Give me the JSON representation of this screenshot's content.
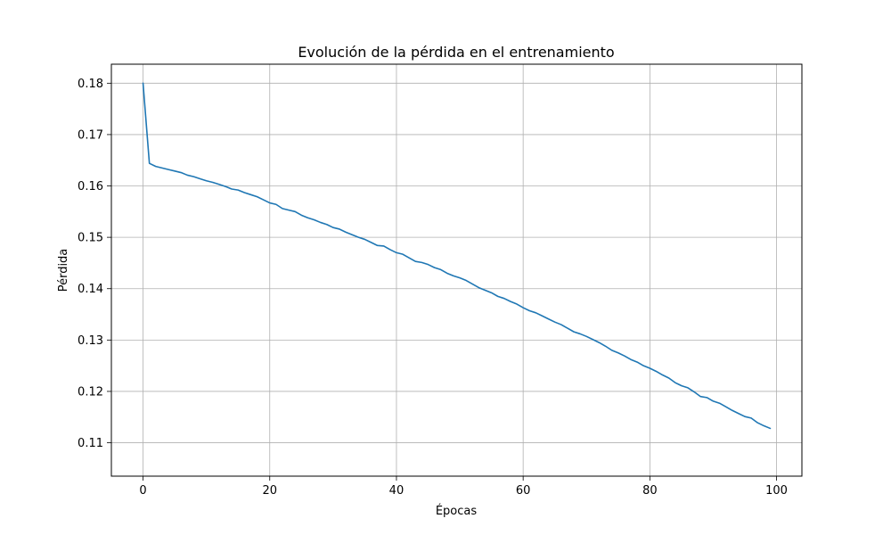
{
  "chart_data": {
    "type": "line",
    "title": "Evolución de la pérdida en el entrenamiento",
    "xlabel": "Épocas",
    "ylabel": "Pérdida",
    "xlim": [
      -5,
      104
    ],
    "ylim": [
      0.1035,
      0.1837
    ],
    "xticks": [
      0,
      20,
      40,
      60,
      80,
      100
    ],
    "yticks": [
      0.11,
      0.12,
      0.13,
      0.14,
      0.15,
      0.16,
      0.17,
      0.18
    ],
    "xtick_labels": [
      "0",
      "20",
      "40",
      "60",
      "80",
      "100"
    ],
    "ytick_labels": [
      "0.11",
      "0.12",
      "0.13",
      "0.14",
      "0.15",
      "0.16",
      "0.17",
      "0.18"
    ],
    "grid": true,
    "series": [
      {
        "color": "#1f77b4",
        "x": [
          0,
          1,
          2,
          3,
          4,
          5,
          6,
          7,
          8,
          9,
          10,
          11,
          12,
          13,
          14,
          15,
          16,
          17,
          18,
          19,
          20,
          21,
          22,
          23,
          24,
          25,
          26,
          27,
          28,
          29,
          30,
          31,
          32,
          33,
          34,
          35,
          36,
          37,
          38,
          39,
          40,
          41,
          42,
          43,
          44,
          45,
          46,
          47,
          48,
          49,
          50,
          51,
          52,
          53,
          54,
          55,
          56,
          57,
          58,
          59,
          60,
          61,
          62,
          63,
          64,
          65,
          66,
          67,
          68,
          69,
          70,
          71,
          72,
          73,
          74,
          75,
          76,
          77,
          78,
          79,
          80,
          81,
          82,
          83,
          84,
          85,
          86,
          87,
          88,
          89,
          90,
          91,
          92,
          93,
          94,
          95,
          96,
          97,
          98,
          99
        ],
        "y": [
          0.18,
          0.1644,
          0.1638,
          0.1635,
          0.1632,
          0.1629,
          0.1626,
          0.1621,
          0.1618,
          0.1614,
          0.161,
          0.1607,
          0.1603,
          0.1599,
          0.1594,
          0.1592,
          0.1587,
          0.1583,
          0.1579,
          0.1573,
          0.1567,
          0.1564,
          0.1556,
          0.1553,
          0.155,
          0.1543,
          0.1538,
          0.1534,
          0.1529,
          0.1525,
          0.1519,
          0.1516,
          0.151,
          0.1505,
          0.15,
          0.1496,
          0.149,
          0.1484,
          0.1483,
          0.1476,
          0.147,
          0.1467,
          0.146,
          0.1453,
          0.1451,
          0.1447,
          0.1441,
          0.1437,
          0.143,
          0.1425,
          0.1421,
          0.1416,
          0.1409,
          0.1402,
          0.1397,
          0.1392,
          0.1385,
          0.1381,
          0.1375,
          0.137,
          0.1363,
          0.1357,
          0.1353,
          0.1347,
          0.1341,
          0.1335,
          0.133,
          0.1323,
          0.1316,
          0.1312,
          0.1307,
          0.1301,
          0.1295,
          0.1288,
          0.128,
          0.1275,
          0.1269,
          0.1262,
          0.1257,
          0.125,
          0.1245,
          0.1239,
          0.1232,
          0.1226,
          0.1217,
          0.1211,
          0.1207,
          0.1199,
          0.119,
          0.1188,
          0.1181,
          0.1177,
          0.117,
          0.1163,
          0.1157,
          0.1151,
          0.1148,
          0.1139,
          0.1133,
          0.1128
        ]
      }
    ]
  }
}
